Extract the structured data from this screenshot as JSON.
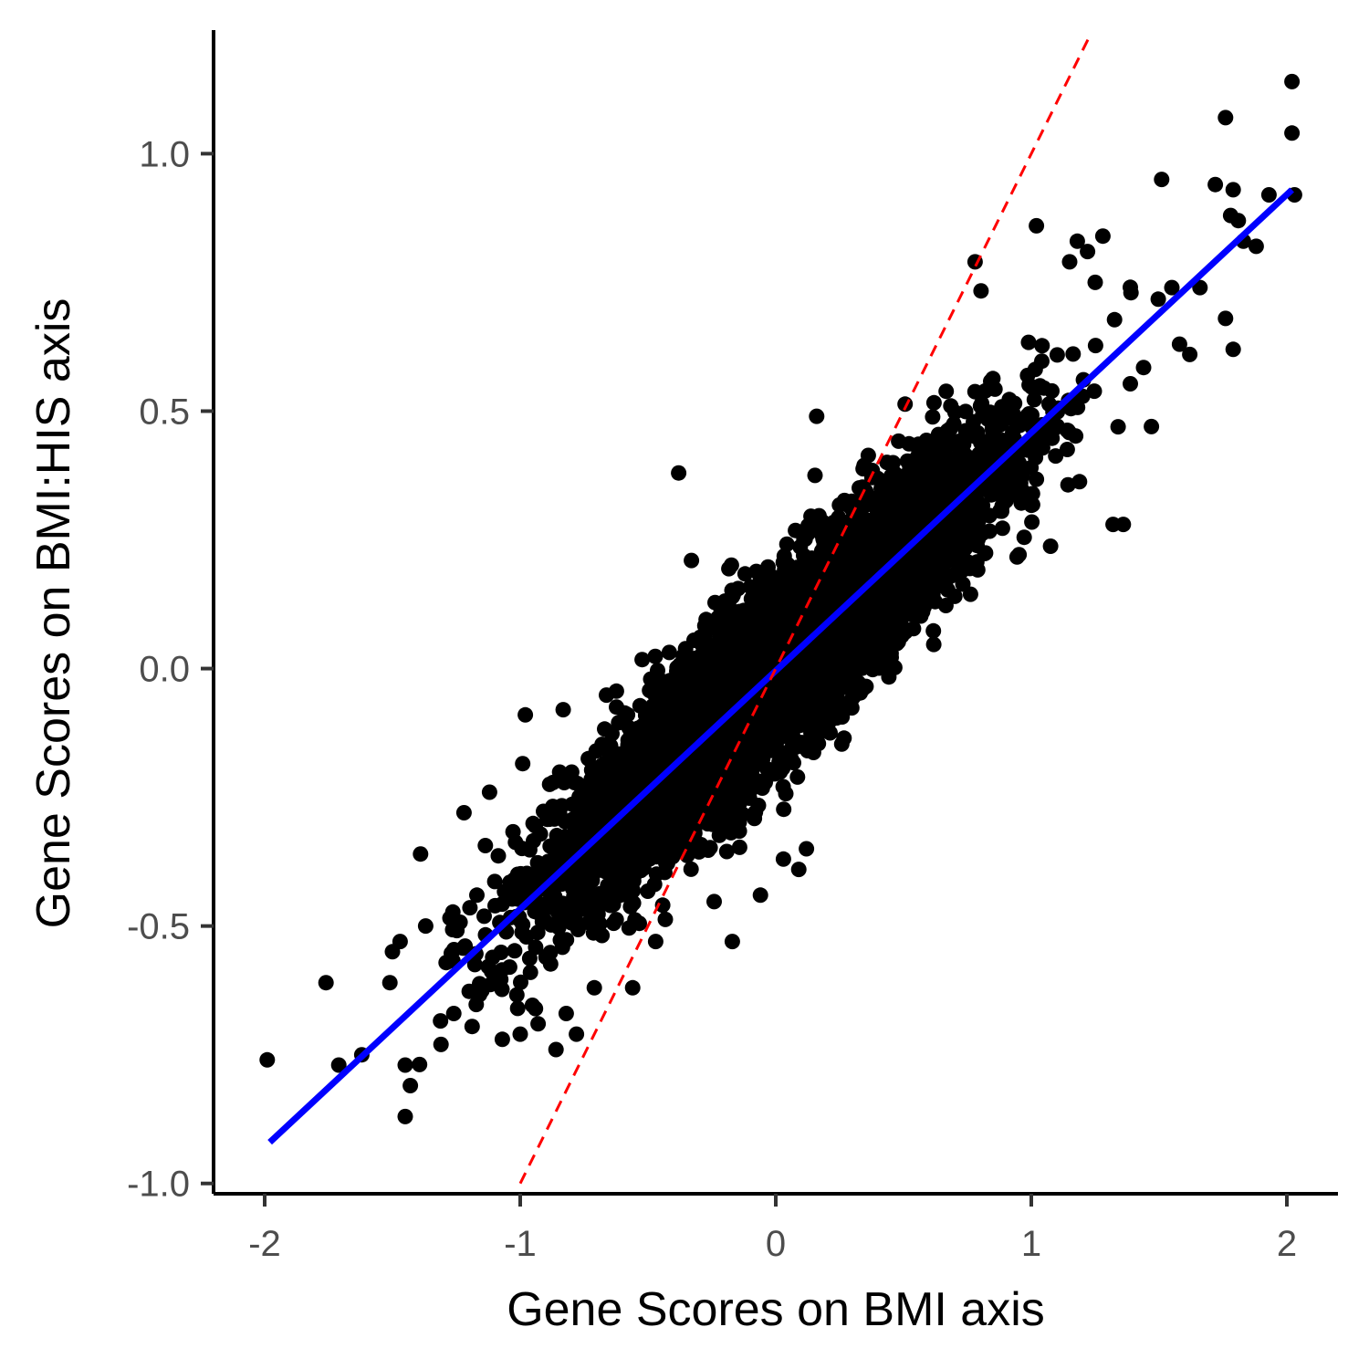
{
  "chart_data": {
    "type": "scatter",
    "xlabel": "Gene Scores on BMI axis",
    "ylabel": "Gene Scores on BMI:HIS axis",
    "xlim": [
      -2.2,
      2.2
    ],
    "ylim": [
      -1.02,
      1.24
    ],
    "x_ticks": [
      -2,
      -1,
      0,
      1,
      2
    ],
    "x_tick_labels": [
      "-2",
      "-1",
      "0",
      "1",
      "2"
    ],
    "y_ticks": [
      -1.0,
      -0.5,
      0.0,
      0.5,
      1.0
    ],
    "y_tick_labels": [
      "-1.0",
      "-0.5",
      "0.0",
      "0.5",
      "1.0"
    ],
    "grid": false,
    "point_color": "#000000",
    "approx_point_count": 6000,
    "bulk_fit_slope": 0.46,
    "bulk_spread_x_sd": 0.42,
    "bulk_residual_sd": 0.085,
    "points": [
      [
        -1.99,
        -0.76
      ],
      [
        -1.76,
        -0.61
      ],
      [
        -1.71,
        -0.77
      ],
      [
        -1.62,
        -0.75
      ],
      [
        -1.51,
        -0.61
      ],
      [
        -1.5,
        -0.55
      ],
      [
        -1.47,
        -0.53
      ],
      [
        -1.45,
        -0.87
      ],
      [
        -1.45,
        -0.77
      ],
      [
        -1.43,
        -0.81
      ],
      [
        -1.39,
        -0.36
      ],
      [
        -1.37,
        -0.5
      ],
      [
        -1.31,
        -0.73
      ],
      [
        -1.26,
        -0.67
      ],
      [
        -1.22,
        -0.28
      ],
      [
        -1.12,
        -0.24
      ],
      [
        -1.07,
        -0.72
      ],
      [
        -1.01,
        -0.66
      ],
      [
        -1.0,
        -0.71
      ],
      [
        -0.98,
        -0.09
      ],
      [
        -0.96,
        -0.59
      ],
      [
        -0.93,
        -0.69
      ],
      [
        -0.86,
        -0.74
      ],
      [
        -0.82,
        -0.67
      ],
      [
        -0.78,
        -0.71
      ],
      [
        -0.71,
        -0.62
      ],
      [
        -0.56,
        -0.62
      ],
      [
        -0.47,
        -0.53
      ],
      [
        -0.38,
        0.38
      ],
      [
        -0.33,
        0.21
      ],
      [
        -0.17,
        -0.53
      ],
      [
        -0.06,
        -0.44
      ],
      [
        0.03,
        -0.37
      ],
      [
        0.09,
        -0.39
      ],
      [
        0.12,
        -0.35
      ],
      [
        0.16,
        0.49
      ],
      [
        0.78,
        0.79
      ],
      [
        1.02,
        0.86
      ],
      [
        1.15,
        0.79
      ],
      [
        1.18,
        0.83
      ],
      [
        1.22,
        0.81
      ],
      [
        1.25,
        0.75
      ],
      [
        1.28,
        0.84
      ],
      [
        1.32,
        0.28
      ],
      [
        1.36,
        0.28
      ],
      [
        1.39,
        0.73
      ],
      [
        1.47,
        0.47
      ],
      [
        1.51,
        0.95
      ],
      [
        1.55,
        0.74
      ],
      [
        1.58,
        0.63
      ],
      [
        1.62,
        0.61
      ],
      [
        1.66,
        0.74
      ],
      [
        1.72,
        0.94
      ],
      [
        1.76,
        0.68
      ],
      [
        1.76,
        1.07
      ],
      [
        1.78,
        0.88
      ],
      [
        1.79,
        0.93
      ],
      [
        1.79,
        0.62
      ],
      [
        1.81,
        0.87
      ],
      [
        1.83,
        0.83
      ],
      [
        1.88,
        0.82
      ],
      [
        1.93,
        0.92
      ],
      [
        2.02,
        1.14
      ],
      [
        2.02,
        1.04
      ],
      [
        2.03,
        0.92
      ]
    ],
    "lines": [
      {
        "style": "solid",
        "color": "#0000ff",
        "x": [
          -1.98,
          2.02
        ],
        "y": [
          -0.92,
          0.93
        ]
      },
      {
        "style": "dashed",
        "color": "#ff0000",
        "x": [
          -1.0,
          1.23
        ],
        "y": [
          -1.0,
          1.23
        ]
      }
    ]
  }
}
